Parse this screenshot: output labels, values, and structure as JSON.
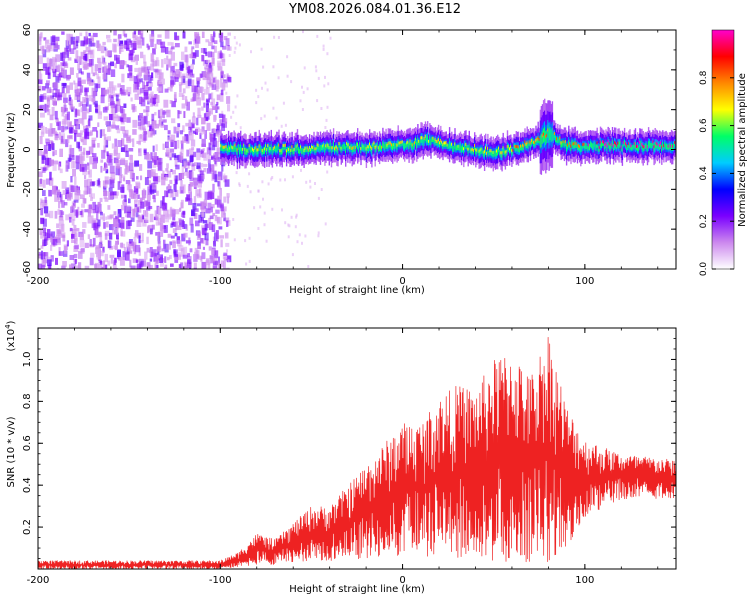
{
  "title": "YM08.2026.084.01.36.E12",
  "chart_data": [
    {
      "type": "heatmap",
      "name": "spectrogram",
      "xlabel": "Height of straight line (km)",
      "ylabel": "Frequency (Hz)",
      "xlim": [
        -200,
        150
      ],
      "ylim": [
        -60,
        60
      ],
      "xticks": [
        -200,
        -100,
        0,
        100
      ],
      "xtick_labels": [
        "-200",
        "-100",
        "0",
        "100"
      ],
      "yticks": [
        -60,
        -40,
        -20,
        0,
        20,
        40,
        60
      ],
      "ytick_labels": [
        "-60",
        "-40",
        "-20",
        "0",
        "20",
        "40",
        "60"
      ],
      "colorbar": {
        "label": "Normalized spectral amplitude",
        "range": [
          0,
          1
        ],
        "ticks": [
          0,
          0.2,
          0.4,
          0.6,
          0.8
        ],
        "tick_labels": [
          "0.0",
          "0.2",
          "0.4",
          "0.6",
          "0.8"
        ],
        "colors": [
          "#ffffff",
          "#cc88ee",
          "#7a00ff",
          "#0000ff",
          "#00ccff",
          "#00ff66",
          "#ffff00",
          "#ff8800",
          "#ff0000",
          "#ff00cc"
        ]
      },
      "signal_band": {
        "x_start": -100,
        "x_end": 150,
        "center_freq": [
          [
            -100,
            0
          ],
          [
            -80,
            0
          ],
          [
            -60,
            0
          ],
          [
            -40,
            1
          ],
          [
            -20,
            1
          ],
          [
            0,
            2
          ],
          [
            15,
            5
          ],
          [
            25,
            2
          ],
          [
            40,
            0
          ],
          [
            50,
            -2
          ],
          [
            60,
            0
          ],
          [
            75,
            5
          ],
          [
            80,
            8
          ],
          [
            90,
            2
          ],
          [
            100,
            1
          ],
          [
            110,
            2
          ],
          [
            150,
            2
          ]
        ],
        "bandwidth_hz": 8
      },
      "noise_region": {
        "x_start": -200,
        "x_end": -100
      }
    },
    {
      "type": "line",
      "name": "snr",
      "xlabel": "Height of straight line (km)",
      "ylabel": "SNR (10 * v/v)",
      "scale_label": "(x10",
      "scale_exponent": "4",
      "xlim": [
        -200,
        150
      ],
      "ylim": [
        0,
        1.15
      ],
      "xticks": [
        -200,
        -100,
        0,
        100
      ],
      "xtick_labels": [
        "-200",
        "-100",
        "0",
        "100"
      ],
      "yticks": [
        0.2,
        0.4,
        0.6,
        0.8,
        1.0
      ],
      "ytick_labels": [
        "0.2",
        "0.4",
        "0.6",
        "0.8",
        "1.0"
      ],
      "color": "#ee2222",
      "envelope": [
        {
          "x": -200,
          "lo": 0.0,
          "hi": 0.04
        },
        {
          "x": -100,
          "lo": 0.0,
          "hi": 0.04
        },
        {
          "x": -90,
          "lo": 0.01,
          "hi": 0.08
        },
        {
          "x": -80,
          "lo": 0.02,
          "hi": 0.17
        },
        {
          "x": -70,
          "lo": 0.02,
          "hi": 0.14
        },
        {
          "x": -60,
          "lo": 0.03,
          "hi": 0.22
        },
        {
          "x": -50,
          "lo": 0.04,
          "hi": 0.3
        },
        {
          "x": -40,
          "lo": 0.04,
          "hi": 0.3
        },
        {
          "x": -20,
          "lo": 0.05,
          "hi": 0.5
        },
        {
          "x": 0,
          "lo": 0.06,
          "hi": 0.7
        },
        {
          "x": 10,
          "lo": 0.06,
          "hi": 0.7
        },
        {
          "x": 20,
          "lo": 0.06,
          "hi": 0.82
        },
        {
          "x": 30,
          "lo": 0.05,
          "hi": 0.88
        },
        {
          "x": 40,
          "lo": 0.05,
          "hi": 0.86
        },
        {
          "x": 50,
          "lo": 0.02,
          "hi": 1.0
        },
        {
          "x": 60,
          "lo": 0.03,
          "hi": 1.05
        },
        {
          "x": 70,
          "lo": 0.03,
          "hi": 0.92
        },
        {
          "x": 80,
          "lo": 0.03,
          "hi": 1.14
        },
        {
          "x": 90,
          "lo": 0.1,
          "hi": 0.78
        },
        {
          "x": 100,
          "lo": 0.25,
          "hi": 0.62
        },
        {
          "x": 120,
          "lo": 0.33,
          "hi": 0.55
        },
        {
          "x": 150,
          "lo": 0.34,
          "hi": 0.52
        }
      ]
    }
  ]
}
